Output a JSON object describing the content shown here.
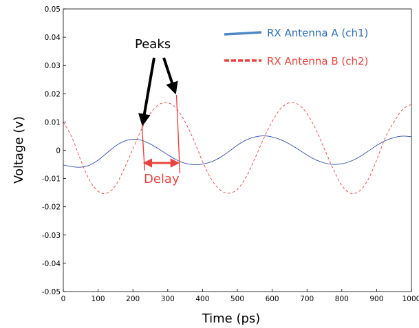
{
  "chart_data": {
    "type": "line",
    "xlabel": "Time (ps)",
    "ylabel": "Voltage (v)",
    "xlim": [
      0,
      1000
    ],
    "ylim": [
      -0.05,
      0.05
    ],
    "xticks": [
      "0",
      "100",
      "200",
      "300",
      "400",
      "500",
      "600",
      "700",
      "800",
      "900",
      "1000"
    ],
    "yticks": [
      "0.05",
      "0.04",
      "0.03",
      "0.02",
      "0.01",
      "0",
      "-0.01",
      "-0.02",
      "-0.03",
      "-0.04",
      "-0.05"
    ],
    "grid": false,
    "legend_position": "top-right",
    "series": [
      {
        "name": "RX Antenna  A (ch1)",
        "style": "solid",
        "color": "#2f4fa8",
        "legend_color": "#4f87c4",
        "x": [
          0,
          25,
          50,
          75,
          100,
          125,
          150,
          175,
          200,
          225,
          250,
          275,
          300,
          325,
          350,
          375,
          400,
          425,
          450,
          475,
          500,
          525,
          550,
          575,
          600,
          625,
          650,
          675,
          700,
          725,
          750,
          775,
          800,
          825,
          850,
          875,
          900,
          925,
          950,
          975,
          1000
        ],
        "y": [
          -0.0052,
          -0.0058,
          -0.006,
          -0.0053,
          -0.0035,
          -0.001,
          0.0015,
          0.0032,
          0.0039,
          0.0035,
          0.0022,
          0.0004,
          -0.0016,
          -0.0034,
          -0.0046,
          -0.0051,
          -0.0049,
          -0.0041,
          -0.0026,
          -0.0005,
          0.0018,
          0.0036,
          0.0047,
          0.0051,
          0.0047,
          0.0037,
          0.0022,
          0.0003,
          -0.0017,
          -0.0034,
          -0.0045,
          -0.005,
          -0.0048,
          -0.0039,
          -0.0024,
          -0.0004,
          0.0017,
          0.0034,
          0.0045,
          0.005,
          0.0048
        ]
      },
      {
        "name": "RX Antenna  B (ch2)",
        "style": "dashed",
        "color": "#e8433f",
        "legend_color": "#e8433f",
        "x": [
          0,
          25,
          50,
          75,
          100,
          125,
          150,
          175,
          200,
          225,
          250,
          275,
          300,
          325,
          350,
          375,
          400,
          425,
          450,
          475,
          500,
          525,
          550,
          575,
          600,
          625,
          650,
          675,
          700,
          725,
          750,
          775,
          800,
          825,
          850,
          875,
          900,
          925,
          950,
          975,
          1000
        ],
        "y": [
          0.01,
          0.0045,
          -0.0035,
          -0.0105,
          -0.0145,
          -0.0152,
          -0.0125,
          -0.0065,
          0.0005,
          0.0075,
          0.013,
          0.0162,
          0.0168,
          0.0148,
          0.01,
          0.0035,
          -0.004,
          -0.0102,
          -0.014,
          -0.0152,
          -0.0138,
          -0.0095,
          -0.003,
          0.004,
          0.0102,
          0.0148,
          0.0168,
          0.0162,
          0.013,
          0.0075,
          0.0005,
          -0.0065,
          -0.0125,
          -0.0152,
          -0.0145,
          -0.0105,
          -0.0035,
          0.0045,
          0.01,
          0.0145,
          0.0162
        ]
      }
    ],
    "annotations": {
      "peaks_label": "Peaks",
      "delay_label": "Delay",
      "peak_a_x": 230,
      "peak_b_x": 335,
      "peaks_color": "#000000",
      "delay_color": "#e8433f"
    }
  }
}
